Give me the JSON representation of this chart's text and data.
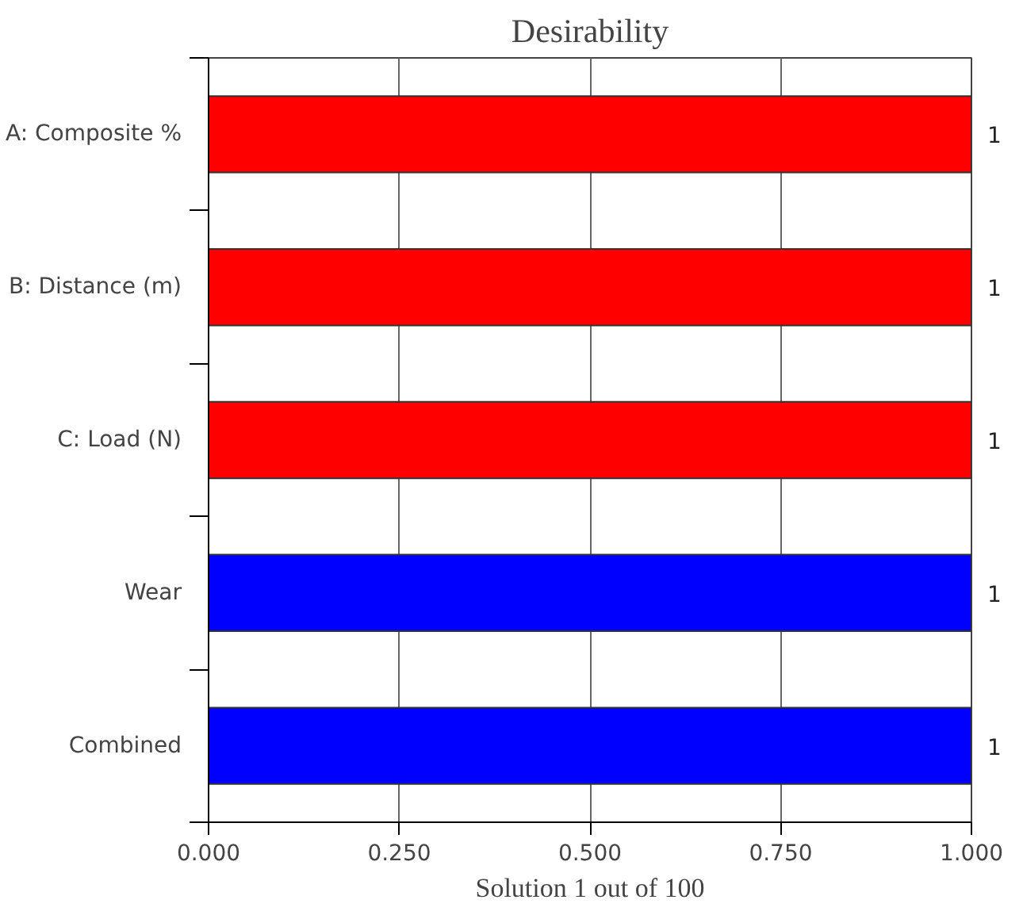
{
  "chart_data": {
    "type": "bar",
    "orientation": "horizontal",
    "title": "Desirability",
    "xlabel": "Solution 1 out of 100",
    "categories": [
      "A: Composite %",
      "B: Distance (m)",
      "C: Load (N)",
      "Wear",
      "Combined"
    ],
    "values": [
      1,
      1,
      1,
      1,
      1
    ],
    "colors": [
      "#ff0000",
      "#ff0000",
      "#ff0000",
      "#0000ff",
      "#0000ff"
    ],
    "xlim": [
      0,
      1
    ],
    "xticks": [
      {
        "value": 0,
        "label": "0.000"
      },
      {
        "value": 0.25,
        "label": "0.250"
      },
      {
        "value": 0.5,
        "label": "0.500"
      },
      {
        "value": 0.75,
        "label": "0.750"
      },
      {
        "value": 1,
        "label": "1.000"
      }
    ],
    "grid": "x",
    "data_labels": true
  }
}
